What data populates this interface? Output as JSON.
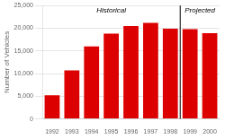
{
  "chart_data": {
    "type": "bar",
    "categories": [
      "1992",
      "1993",
      "1994",
      "1995",
      "1996",
      "1997",
      "1998",
      "1999",
      "2000"
    ],
    "values": [
      5200,
      10700,
      16000,
      18800,
      20500,
      21200,
      19900,
      19800,
      18900
    ],
    "color": "#dd0000",
    "ylabel": "Number of Vehicles",
    "ylim": [
      0,
      25000
    ],
    "yticks": [
      0,
      {
        "value": 5000,
        "label": "5,000"
      },
      {
        "value": 10000,
        "label": "10,000"
      },
      {
        "value": 15000,
        "label": "15,000"
      },
      {
        "value": 20000,
        "label": "20,000"
      },
      {
        "value": 25000,
        "label": "25,000"
      }
    ],
    "grid": true,
    "annotations": [
      {
        "text": "Historical",
        "from": "1992",
        "to": "1998"
      },
      {
        "text": "Projected",
        "from": "1999",
        "to": "2000"
      }
    ]
  }
}
